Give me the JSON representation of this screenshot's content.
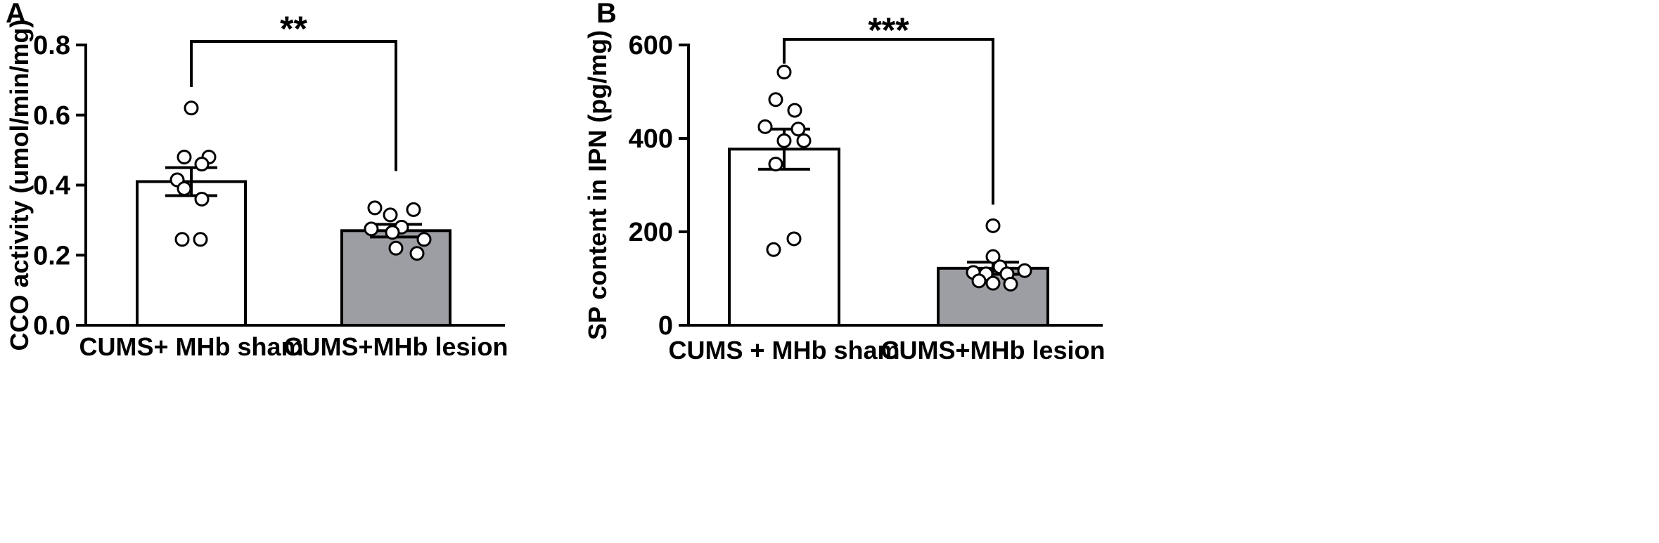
{
  "chart_data": [
    {
      "type": "bar",
      "panel": "A",
      "ylabel": "CCO activity (umol/min/mg)",
      "ylim": [
        0,
        0.8
      ],
      "yticks": [
        "0.0",
        "0.2",
        "0.4",
        "0.6",
        "0.8"
      ],
      "categories": [
        "CUMS+ MHb sham",
        "CUMS+MHb lesion"
      ],
      "bars": [
        {
          "mean": 0.41,
          "sem": 0.04,
          "fill": "#ffffff",
          "points": [
            0.62,
            0.48,
            0.48,
            0.46,
            0.415,
            0.39,
            0.36,
            0.245,
            0.245
          ]
        },
        {
          "mean": 0.27,
          "sem": 0.018,
          "fill": "#9c9ea3",
          "points": [
            0.335,
            0.33,
            0.315,
            0.28,
            0.275,
            0.265,
            0.245,
            0.22,
            0.205
          ]
        }
      ],
      "significance": "**",
      "bracket": {
        "from": 0,
        "to": 1,
        "y": 0.81,
        "left_bottom": 0.68,
        "right_bottom": 0.44
      }
    },
    {
      "type": "bar",
      "panel": "B",
      "ylabel": "SP content in IPN (pg/mg)",
      "ylim": [
        0,
        600
      ],
      "yticks": [
        "0",
        "200",
        "400",
        "600"
      ],
      "categories": [
        "CUMS + MHb sham",
        "CUMS+MHb lesion"
      ],
      "bars": [
        {
          "mean": 377,
          "sem": 43,
          "fill": "#ffffff",
          "points": [
            542,
            483,
            460,
            425,
            420,
            395,
            395,
            345,
            185,
            162
          ]
        },
        {
          "mean": 122,
          "sem": 13,
          "fill": "#9c9ea3",
          "points": [
            213,
            147,
            125,
            117,
            113,
            110,
            110,
            95,
            90,
            88
          ]
        }
      ],
      "significance": "***",
      "bracket": {
        "from": 0,
        "to": 1,
        "y": 612,
        "left_bottom": 560,
        "right_bottom": 258
      }
    }
  ],
  "colors": {
    "axis": "#000000",
    "bar_sham": "#ffffff",
    "bar_lesion": "#9c9ea3",
    "point_fill": "#ffffff"
  }
}
